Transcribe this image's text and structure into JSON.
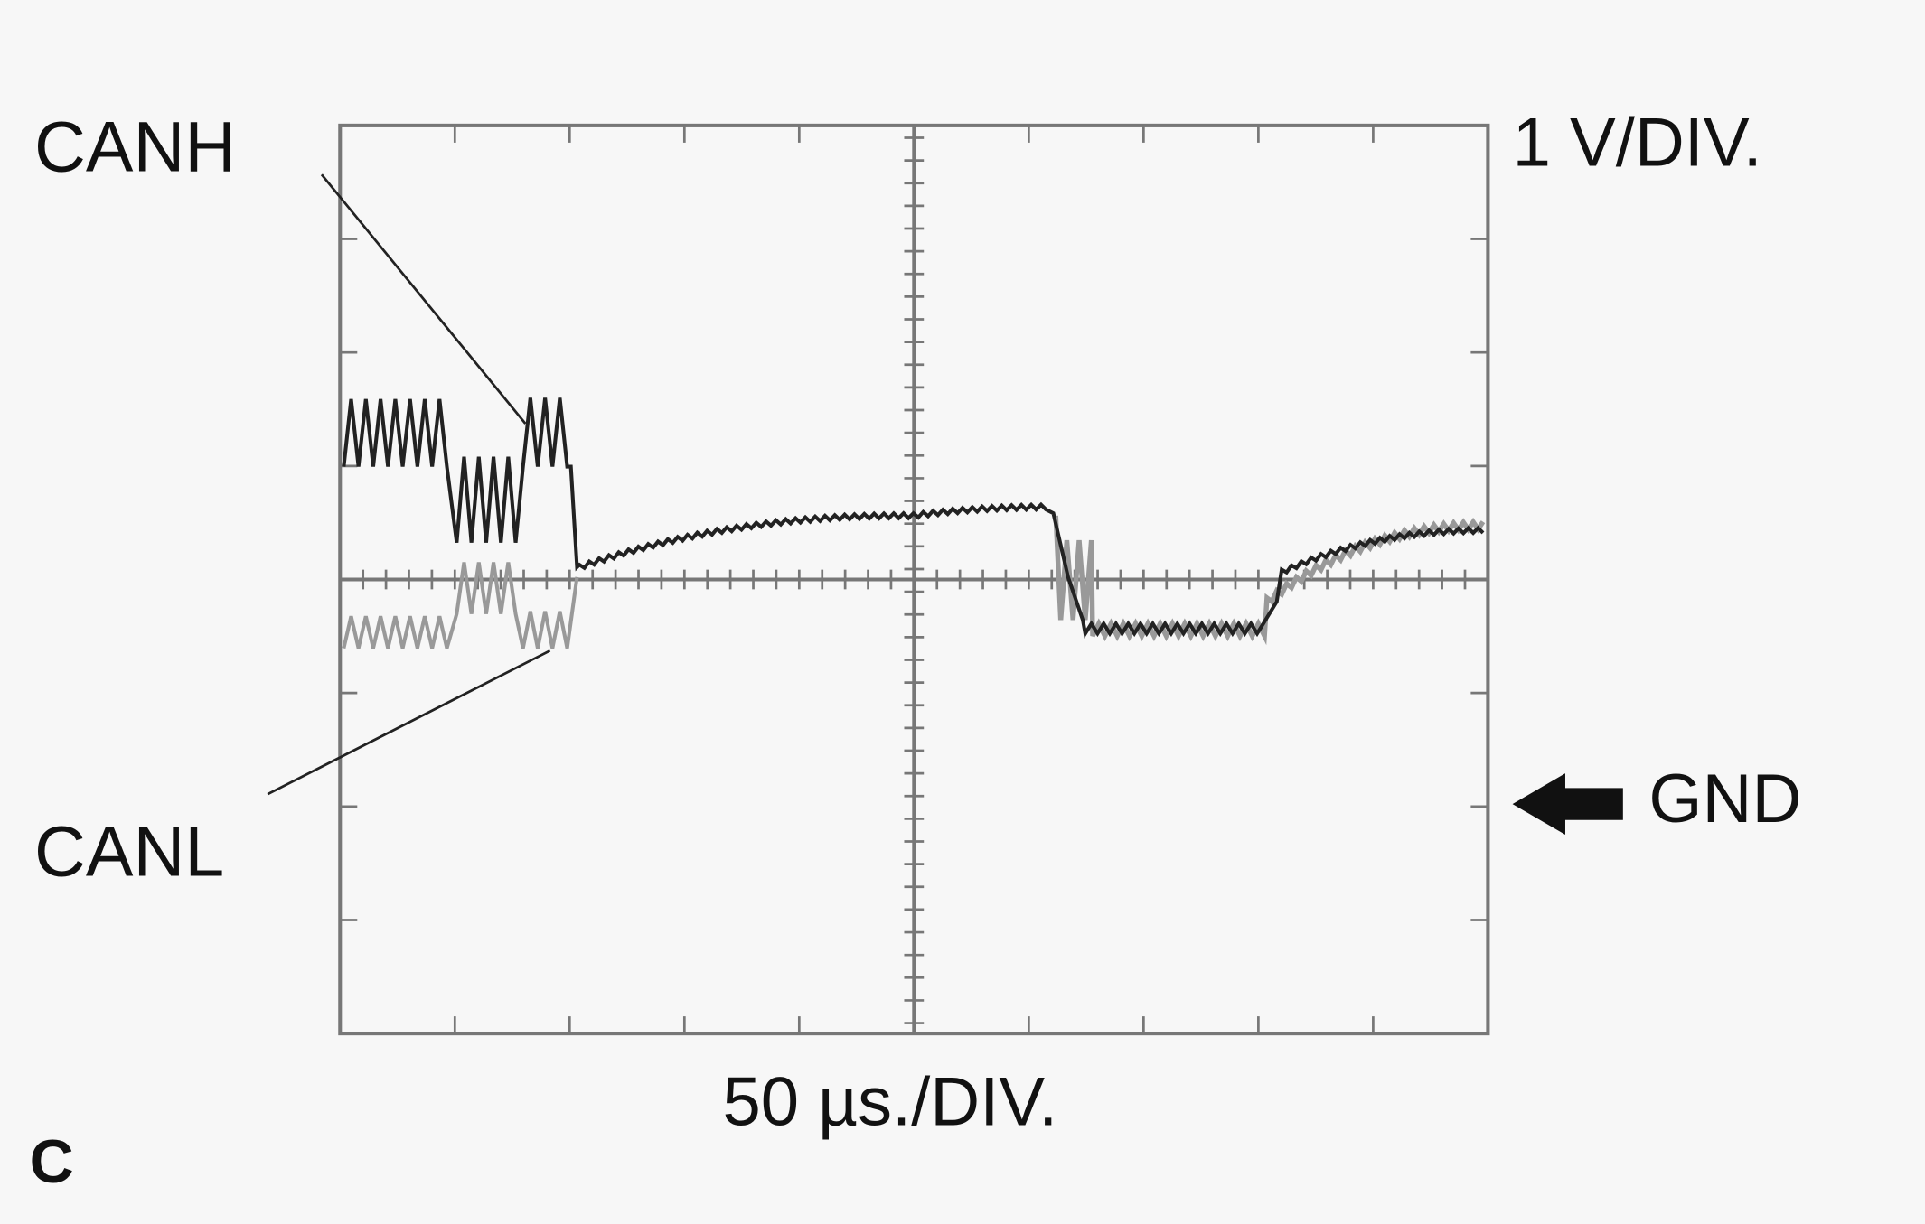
{
  "labels": {
    "canh": "CANH",
    "canl": "CANL",
    "volts_per_div": "1 V/DIV.",
    "gnd": "GND",
    "time_per_div": "50 µs./DIV.",
    "panel": "C"
  }
}
